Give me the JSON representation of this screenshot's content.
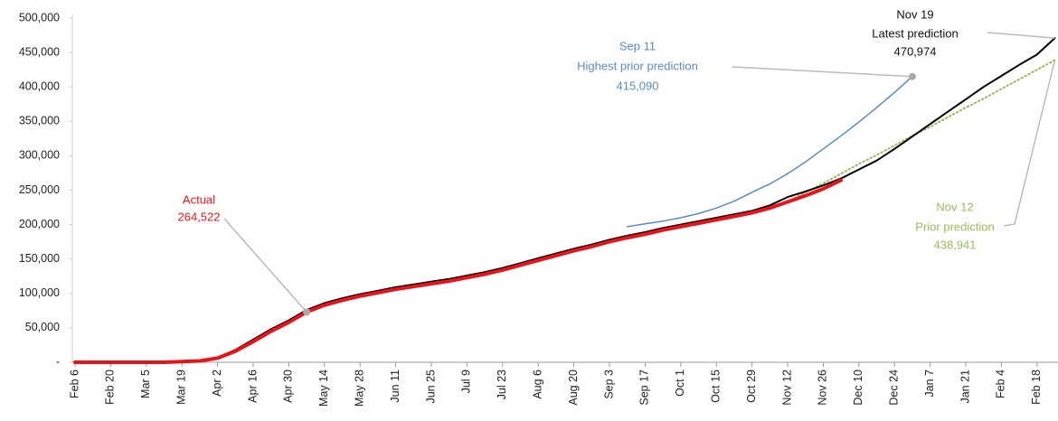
{
  "chart_data": {
    "type": "line",
    "x": [
      "Feb 6",
      null,
      "Feb 20",
      null,
      "Mar 5",
      null,
      "Mar 19",
      null,
      "Apr 2",
      null,
      "Apr 16",
      null,
      "Apr 30",
      null,
      "May 14",
      null,
      "May 28",
      null,
      "Jun 11",
      null,
      "Jun 25",
      null,
      "Jul 9",
      null,
      "Jul 23",
      null,
      "Aug 6",
      null,
      "Aug 20",
      null,
      "Sep 3",
      null,
      "Sep 17",
      null,
      "Oct 1",
      null,
      "Oct 15",
      null,
      "Oct 29",
      null,
      "Nov 12",
      null,
      "Nov 26",
      null,
      "Dec 10",
      null,
      "Dec 24",
      null,
      "Jan 7",
      null,
      "Jan 21",
      null,
      "Feb 4",
      null,
      "Feb 18",
      null
    ],
    "ylim": [
      0,
      500000
    ],
    "yticks": [
      {
        "value": 0,
        "label": "-"
      },
      {
        "value": 50000,
        "label": "50,000"
      },
      {
        "value": 100000,
        "label": "100,000"
      },
      {
        "value": 150000,
        "label": "150,000"
      },
      {
        "value": 200000,
        "label": "200,000"
      },
      {
        "value": 250000,
        "label": "250,000"
      },
      {
        "value": 300000,
        "label": "300,000"
      },
      {
        "value": 350000,
        "label": "350,000"
      },
      {
        "value": 400000,
        "label": "400,000"
      },
      {
        "value": 450000,
        "label": "450,000"
      },
      {
        "value": 500000,
        "label": "500,000"
      }
    ],
    "grid": false,
    "series": [
      {
        "name": "Actual",
        "color": "#e8141c",
        "width": 4,
        "style": "solid",
        "values": [
          0,
          0,
          0,
          0,
          0,
          0,
          1000,
          2000,
          6000,
          16000,
          30000,
          45000,
          58000,
          73000,
          83000,
          90000,
          96000,
          101000,
          106000,
          110000,
          114000,
          118000,
          123000,
          128000,
          134000,
          141000,
          148000,
          155000,
          162000,
          168000,
          175000,
          181000,
          186000,
          192000,
          197000,
          202000,
          207000,
          212000,
          217000,
          224000,
          233000,
          242000,
          252000,
          264522,
          null,
          null,
          null,
          null,
          null,
          null,
          null,
          null,
          null,
          null,
          null,
          null
        ],
        "value_labels": [
          null,
          null,
          null,
          null,
          null,
          null,
          null,
          null,
          null,
          null,
          null,
          null,
          null,
          null,
          null,
          null,
          null,
          null,
          null,
          null,
          null,
          null,
          null,
          null,
          null,
          null,
          null,
          null,
          null,
          null,
          null,
          null,
          null,
          null,
          null,
          null,
          null,
          null,
          null,
          null,
          null,
          null,
          null,
          "264,522",
          null,
          null,
          null,
          null,
          null,
          null,
          null,
          null,
          null,
          null,
          null,
          null
        ]
      },
      {
        "name": "Highest prior prediction",
        "date": "Sep 11",
        "color": "#5b8bc5",
        "width": 1.5,
        "style": "solid",
        "values": [
          null,
          null,
          null,
          null,
          null,
          null,
          null,
          null,
          null,
          null,
          null,
          null,
          null,
          null,
          null,
          null,
          null,
          null,
          null,
          null,
          null,
          null,
          null,
          null,
          null,
          null,
          null,
          null,
          null,
          null,
          null,
          197000,
          201000,
          205000,
          210000,
          216000,
          224000,
          234000,
          247000,
          259000,
          274000,
          291000,
          310000,
          329000,
          349000,
          370000,
          392000,
          415090,
          null,
          null,
          null,
          null,
          null,
          null,
          null,
          null
        ],
        "value_labels": [
          null,
          null,
          null,
          null,
          null,
          null,
          null,
          null,
          null,
          null,
          null,
          null,
          null,
          null,
          null,
          null,
          null,
          null,
          null,
          null,
          null,
          null,
          null,
          null,
          null,
          null,
          null,
          null,
          null,
          null,
          null,
          null,
          null,
          null,
          null,
          null,
          null,
          null,
          null,
          null,
          null,
          null,
          null,
          null,
          null,
          null,
          null,
          "415,090",
          null,
          null,
          null,
          null,
          null,
          null,
          null,
          null
        ]
      },
      {
        "name": "Latest prediction",
        "date": "Nov 19",
        "color": "#000000",
        "width": 2,
        "style": "solid",
        "values": [
          0,
          0,
          0,
          0,
          0,
          0,
          1000,
          2000,
          7000,
          18000,
          33000,
          48000,
          61000,
          76000,
          86000,
          93000,
          99000,
          104000,
          109000,
          113000,
          117000,
          121000,
          126000,
          131000,
          137000,
          144000,
          151000,
          158000,
          165000,
          171000,
          178000,
          184000,
          189000,
          195000,
          200000,
          205000,
          210000,
          215000,
          220000,
          228000,
          240000,
          248000,
          257000,
          267000,
          280000,
          293000,
          310000,
          328000,
          346000,
          364000,
          382000,
          400000,
          416000,
          432000,
          447000,
          470974
        ],
        "value_labels": [
          null,
          null,
          null,
          null,
          null,
          null,
          null,
          null,
          null,
          null,
          null,
          null,
          null,
          null,
          null,
          null,
          null,
          null,
          null,
          null,
          null,
          null,
          null,
          null,
          null,
          null,
          null,
          null,
          null,
          null,
          null,
          null,
          null,
          null,
          null,
          null,
          null,
          null,
          null,
          null,
          null,
          null,
          null,
          null,
          null,
          null,
          null,
          null,
          null,
          null,
          null,
          null,
          null,
          null,
          null,
          "470,974"
        ]
      },
      {
        "name": "Prior prediction",
        "date": "Nov 12",
        "color": "#9bbb59",
        "width": 2,
        "style": "dotted",
        "values": [
          null,
          null,
          null,
          null,
          null,
          null,
          null,
          null,
          null,
          null,
          null,
          null,
          null,
          null,
          null,
          null,
          null,
          null,
          null,
          null,
          null,
          null,
          null,
          null,
          null,
          null,
          null,
          null,
          null,
          null,
          null,
          null,
          null,
          null,
          null,
          null,
          null,
          null,
          null,
          null,
          233000,
          247000,
          260000,
          274000,
          288000,
          301000,
          315000,
          329000,
          342000,
          356000,
          370000,
          383000,
          397000,
          411000,
          425000,
          438941
        ],
        "value_labels": [
          null,
          null,
          null,
          null,
          null,
          null,
          null,
          null,
          null,
          null,
          null,
          null,
          null,
          null,
          null,
          null,
          null,
          null,
          null,
          null,
          null,
          null,
          null,
          null,
          null,
          null,
          null,
          null,
          null,
          null,
          null,
          null,
          null,
          null,
          null,
          null,
          null,
          null,
          null,
          null,
          null,
          null,
          null,
          null,
          null,
          null,
          null,
          null,
          null,
          null,
          null,
          null,
          null,
          null,
          null,
          "438,941"
        ]
      }
    ]
  }
}
